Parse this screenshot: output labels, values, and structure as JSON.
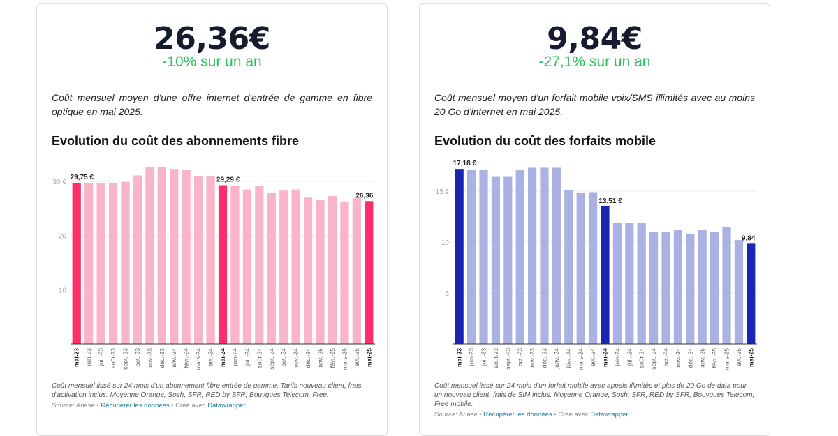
{
  "cards": [
    {
      "value": "26,36€",
      "change": "-10% sur un an",
      "description": "Coût mensuel moyen d'une offre internet d'entrée de gamme en fibre optique en mai 2025.",
      "notes": "Coût mensuel lissé sur 24 mois d'un abonnement fibre entrée de gamme. Tarifs nouveau client, frais d'activation inclus. Moyenne Orange, Sosh, SFR, RED by SFR, Bouygues Telecom, Free.",
      "source": "Source: Ariase",
      "download": "Récupérer les données",
      "made_with": "Créé avec",
      "tool": "Datawrapper"
    },
    {
      "value": "9,84€",
      "change": "-27,1% sur un an",
      "description": "Coût mensuel moyen d'un forfait mobile voix/SMS illimités avec au moins 20 Go d'internet en mai 2025.",
      "notes": "Coût mensuel lissé sur 24 mois d'un forfait mobile avec appels illimités et plus de 20 Go de data pour un nouveau client, frais de SIM inclus. Moyenne Orange, Sosh, SFR, RED by SFR, Bouygues Telecom, Free mobile.",
      "source": "Source: Ariase",
      "download": "Récupérer les données",
      "made_with": "Créé avec",
      "tool": "Datawrapper"
    }
  ],
  "chart_data": [
    {
      "type": "bar",
      "title": "Evolution du coût des abonnements fibre",
      "categories": [
        "mai-23",
        "juin-23",
        "juil.-23",
        "août-23",
        "sept.-23",
        "oct.-23",
        "nov.-23",
        "déc.-23",
        "janv.-24",
        "févr.-24",
        "mars-24",
        "avr.-24",
        "mai-24",
        "juin-24",
        "juil.-24",
        "août-24",
        "sept.-24",
        "oct.-24",
        "nov.-24",
        "déc.-24",
        "janv.-25",
        "févr.-25",
        "mars-25",
        "avr.-25",
        "mai-25"
      ],
      "values": [
        29.75,
        29.7,
        29.7,
        29.7,
        29.9,
        31.1,
        32.6,
        32.6,
        32.3,
        32.1,
        31.0,
        31.0,
        29.29,
        29.1,
        28.5,
        29.1,
        27.9,
        28.3,
        28.5,
        27.0,
        26.6,
        27.3,
        26.3,
        26.9,
        26.36
      ],
      "highlighted": [
        "mai-23",
        "mai-24",
        "mai-25"
      ],
      "data_labels": {
        "mai-23": "29,75 €",
        "mai-24": "29,29 €",
        "mai-25": "26,36"
      },
      "yticks": [
        {
          "value": 10,
          "label": "10"
        },
        {
          "value": 20,
          "label": "20"
        },
        {
          "value": 30,
          "label": "30 €"
        }
      ],
      "ylim": [
        0,
        33
      ],
      "grid": true,
      "colors": {
        "base": "#f9b4ca",
        "highlight": "#ff2d6b"
      }
    },
    {
      "type": "bar",
      "title": "Evolution du coût des forfaits mobile",
      "categories": [
        "mai-23",
        "juin-23",
        "juil.-23",
        "août-23",
        "sept.-23",
        "oct.-23",
        "nov.-23",
        "déc.-23",
        "janv.-24",
        "févr.-24",
        "mars-24",
        "avr.-24",
        "mai-24",
        "juin-24",
        "juil.-24",
        "août-24",
        "sept.-24",
        "oct.-24",
        "nov.-24",
        "déc.-24",
        "janv.-25",
        "févr.-25",
        "mars-25",
        "avr.-25",
        "mai-25"
      ],
      "values": [
        17.18,
        17.1,
        17.1,
        16.4,
        16.4,
        17.05,
        17.3,
        17.3,
        17.3,
        15.07,
        14.8,
        14.9,
        13.51,
        11.85,
        11.85,
        11.85,
        11.0,
        11.0,
        11.2,
        10.8,
        11.2,
        11.0,
        11.5,
        10.2,
        9.84
      ],
      "highlighted": [
        "mai-23",
        "mai-24",
        "mai-25"
      ],
      "data_labels": {
        "mai-23": "17,18 €",
        "mai-24": "13,51 €",
        "mai-25": "9,84"
      },
      "yticks": [
        {
          "value": 5,
          "label": "5"
        },
        {
          "value": 10,
          "label": "10"
        },
        {
          "value": 15,
          "label": "15 €"
        }
      ],
      "ylim": [
        0,
        17.5
      ],
      "grid": true,
      "colors": {
        "base": "#aab1e3",
        "highlight": "#1a26b3"
      }
    }
  ]
}
